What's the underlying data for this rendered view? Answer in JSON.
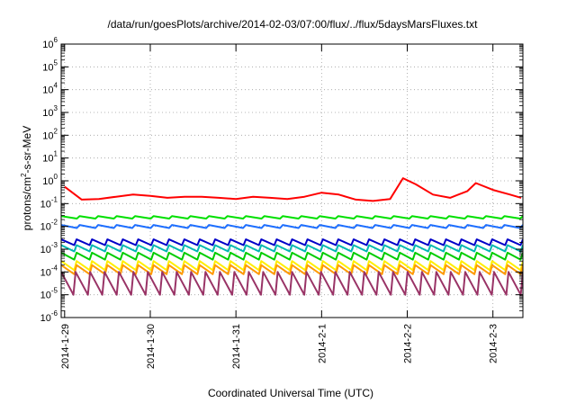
{
  "chart_data": {
    "type": "line",
    "title": "/data/run/goesPlots/archive/2014-02-03/07:00/flux/../flux/5daysMarsFluxes.txt",
    "xlabel": "Coordinated Universal Time (UTC)",
    "ylabel_prefix": "protons/cm",
    "ylabel_sup": "2",
    "ylabel_suffix": "-s-sr-MeV",
    "yscale": "log",
    "ylim": [
      1e-06,
      1000000.0
    ],
    "xlim": [
      -0.04,
      5.35
    ],
    "x_unit": "days since 2014-1-29",
    "grid": true,
    "legend": "none",
    "x_ticks": [
      {
        "value": 0,
        "label": "2014-1-29"
      },
      {
        "value": 1,
        "label": "2014-1-30"
      },
      {
        "value": 2,
        "label": "2014-1-31"
      },
      {
        "value": 3,
        "label": "2014-2-1"
      },
      {
        "value": 4,
        "label": "2014-2-2"
      },
      {
        "value": 5,
        "label": "2014-2-3"
      }
    ],
    "y_ticks": [
      {
        "exp": -6,
        "base": "10",
        "sup": "-6"
      },
      {
        "exp": -5,
        "base": "10",
        "sup": "-5"
      },
      {
        "exp": -4,
        "base": "10",
        "sup": "-4"
      },
      {
        "exp": -3,
        "base": "10",
        "sup": "-3"
      },
      {
        "exp": -2,
        "base": "10",
        "sup": "-2"
      },
      {
        "exp": -1,
        "base": "10",
        "sup": "-1"
      },
      {
        "exp": 0,
        "base": "10",
        "sup": "0"
      },
      {
        "exp": 1,
        "base": "10",
        "sup": "1"
      },
      {
        "exp": 2,
        "base": "10",
        "sup": "2"
      },
      {
        "exp": 3,
        "base": "10",
        "sup": "3"
      },
      {
        "exp": 4,
        "base": "10",
        "sup": "4"
      },
      {
        "exp": 5,
        "base": "10",
        "sup": "5"
      },
      {
        "exp": 6,
        "base": "10",
        "sup": "6"
      }
    ],
    "series": [
      {
        "color": "#ff0000",
        "x": [
          0.0,
          0.2,
          0.4,
          0.6,
          0.8,
          1.0,
          1.2,
          1.4,
          1.6,
          1.8,
          2.0,
          2.2,
          2.4,
          2.6,
          2.8,
          3.0,
          3.2,
          3.4,
          3.6,
          3.8,
          3.95,
          4.1,
          4.3,
          4.5,
          4.7,
          4.8,
          5.0,
          5.2,
          5.33
        ],
        "y": [
          0.55,
          0.15,
          0.16,
          0.2,
          0.25,
          0.22,
          0.18,
          0.2,
          0.2,
          0.18,
          0.16,
          0.2,
          0.18,
          0.16,
          0.2,
          0.3,
          0.25,
          0.15,
          0.13,
          0.16,
          1.3,
          0.7,
          0.25,
          0.18,
          0.35,
          0.8,
          0.4,
          0.25,
          0.18
        ]
      },
      {
        "color": "#00e000",
        "base": 0.022,
        "amp": 0.006,
        "spikes": 25
      },
      {
        "color": "#1e6fff",
        "base": 0.0085,
        "amp": 0.003,
        "spikes": 25
      },
      {
        "color": "#0000c8",
        "base": 0.0015,
        "amp": 0.0012,
        "spikes": 30
      },
      {
        "color": "#00b8b0",
        "base": 0.0008,
        "amp": 0.0007,
        "spikes": 30
      },
      {
        "color": "#00cc00",
        "base": 0.00035,
        "amp": 0.00035,
        "spikes": 30
      },
      {
        "color": "#ffee00",
        "base": 0.00012,
        "amp": 0.00018,
        "spikes": 30
      },
      {
        "color": "#ff9900",
        "base": 8e-05,
        "amp": 0.00012,
        "spikes": 30
      },
      {
        "color": "#993366",
        "base": 1e-05,
        "amp": 9e-05,
        "spikes": 32
      }
    ]
  }
}
